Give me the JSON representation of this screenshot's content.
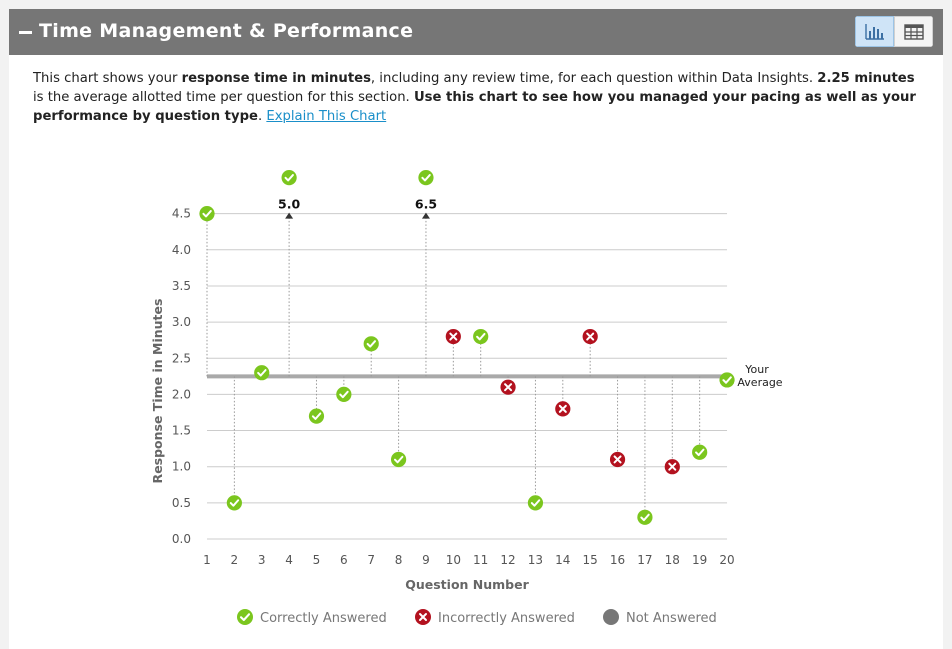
{
  "header": {
    "title": "Time Management & Performance"
  },
  "description": {
    "part1": "This chart shows your ",
    "bold1": "response time in minutes",
    "part2": ", including any review time, for each question within Data Insights. ",
    "bold2": "2.25 minutes",
    "part3": " is the average allotted time per question for this section. ",
    "bold3": "Use this chart to see how you managed your pacing as well as your performance by question type",
    "part4": ". ",
    "link": "Explain This Chart"
  },
  "legend": {
    "correct": "Correctly Answered",
    "incorrect": "Incorrectly Answered",
    "not_answered": "Not Answered"
  },
  "colors": {
    "correct": "#7bc61e",
    "incorrect": "#b3121f",
    "not_answered": "#777777",
    "average_line": "#a9a9a9",
    "grid": "#cccccc"
  },
  "chart_data": {
    "type": "scatter",
    "ylabel": "Response Time in Minutes",
    "xlabel": "Question Number",
    "ylim": [
      0,
      4.5
    ],
    "yticks": [
      "0.0",
      "0.5",
      "1.0",
      "1.5",
      "2.0",
      "2.5",
      "3.0",
      "3.5",
      "4.0",
      "4.5"
    ],
    "x": [
      1,
      2,
      3,
      4,
      5,
      6,
      7,
      8,
      9,
      10,
      11,
      12,
      13,
      14,
      15,
      16,
      17,
      18,
      19,
      20
    ],
    "average": 2.25,
    "average_label": [
      "Your",
      "Average"
    ],
    "grid": true,
    "legend_position": "bottom",
    "points": [
      {
        "q": 1,
        "time": 4.5,
        "result": "correct"
      },
      {
        "q": 2,
        "time": 0.5,
        "result": "correct"
      },
      {
        "q": 3,
        "time": 2.3,
        "result": "correct"
      },
      {
        "q": 4,
        "time": 5.0,
        "result": "correct",
        "overflow_label": "5.0"
      },
      {
        "q": 5,
        "time": 1.7,
        "result": "correct"
      },
      {
        "q": 6,
        "time": 2.0,
        "result": "correct"
      },
      {
        "q": 7,
        "time": 2.7,
        "result": "correct"
      },
      {
        "q": 8,
        "time": 1.1,
        "result": "correct"
      },
      {
        "q": 9,
        "time": 6.5,
        "result": "correct",
        "overflow_label": "6.5"
      },
      {
        "q": 10,
        "time": 2.8,
        "result": "incorrect"
      },
      {
        "q": 11,
        "time": 2.8,
        "result": "correct"
      },
      {
        "q": 12,
        "time": 2.1,
        "result": "incorrect"
      },
      {
        "q": 13,
        "time": 0.5,
        "result": "correct"
      },
      {
        "q": 14,
        "time": 1.8,
        "result": "incorrect"
      },
      {
        "q": 15,
        "time": 2.8,
        "result": "incorrect"
      },
      {
        "q": 16,
        "time": 1.1,
        "result": "incorrect"
      },
      {
        "q": 17,
        "time": 0.3,
        "result": "correct"
      },
      {
        "q": 18,
        "time": 1.0,
        "result": "incorrect"
      },
      {
        "q": 19,
        "time": 1.2,
        "result": "correct"
      },
      {
        "q": 20,
        "time": 2.2,
        "result": "correct"
      }
    ]
  }
}
